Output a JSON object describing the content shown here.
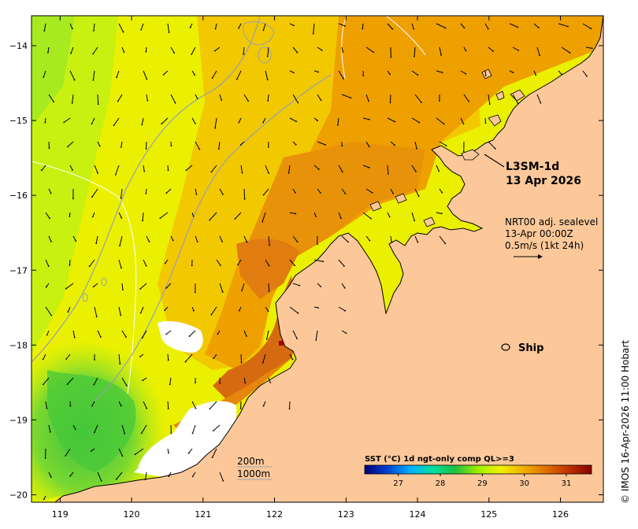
{
  "product": {
    "name": "L3SM-1d",
    "date": "13 Apr 2026"
  },
  "currents": {
    "label": "NRT00 adj. sealevel",
    "time": "13-Apr 00:00Z",
    "scale": "0.5m/s (1kt 24h)"
  },
  "ship": {
    "label": "Ship",
    "lon": 125.3,
    "lat": -18.0
  },
  "isobaths": {
    "shallow": "200m",
    "deep": "1000m"
  },
  "credit": "© IMOS 16-Apr-2026 11:00 Hobart",
  "colorbar": {
    "title": "SST (°C) 1d ngt-only comp QL>=3",
    "ticks": [
      "27",
      "28",
      "29",
      "30",
      "31"
    ],
    "range": [
      26.2,
      31.6
    ],
    "stops": [
      "#00007a",
      "#0040d0",
      "#00b0ff",
      "#00e0a0",
      "#20c040",
      "#a0f000",
      "#f0f000",
      "#f0b000",
      "#e07000",
      "#c03000",
      "#8a0000"
    ]
  },
  "axes": {
    "lon_ticks": [
      "119",
      "120",
      "121",
      "122",
      "123",
      "124",
      "125",
      "126"
    ],
    "lat_ticks": [
      "−14",
      "−15",
      "−16",
      "−17",
      "−18",
      "−19",
      "−20"
    ],
    "lon_range": [
      118.6,
      126.6
    ],
    "lat_range": [
      -20.1,
      -13.6
    ]
  },
  "colors": {
    "land": "#fcc89a",
    "coast": "#000000",
    "no_data": "#ffffff",
    "isobath": "#9aa0b0"
  }
}
